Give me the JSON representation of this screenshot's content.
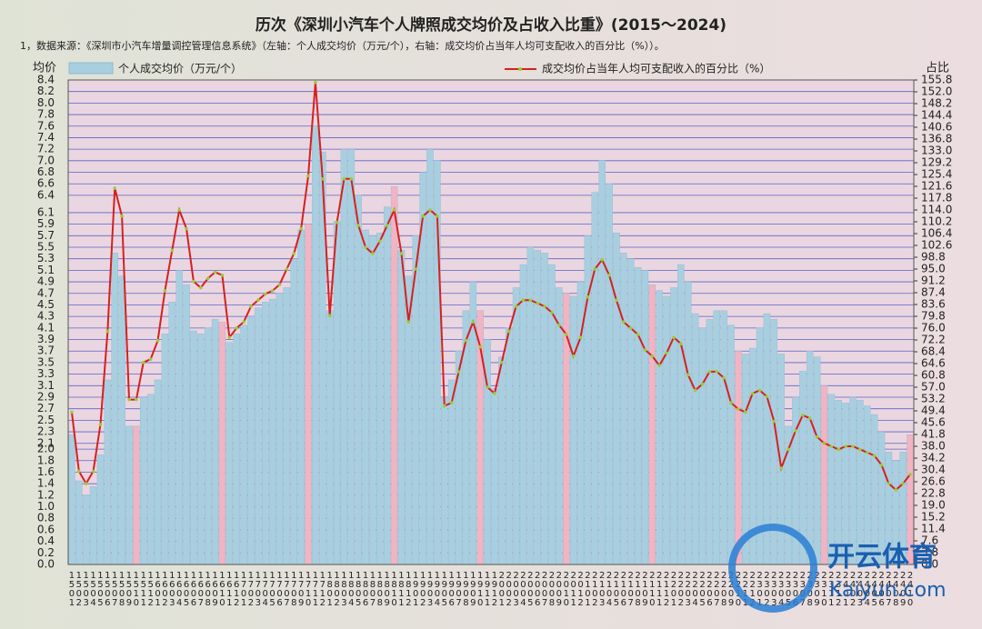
{
  "chart_data": {
    "type": "bar_line",
    "title": "历次《深圳小汽车个人牌照成交均价及占收入比重》(2015～2024)",
    "subtitle": "1，数据来源：《深圳市小汽车增量调控管理信息系统》（左轴：个人成交均价（万元/个），右轴：成交均价占当年人均可支配收入的百分比（%））。",
    "ylabel": "均价",
    "y2label": "占比",
    "watermark": "开云体育",
    "watermark_sub": "Kaiyun.com",
    "categories": [
      "1501",
      "1502",
      "1503",
      "1504",
      "1505",
      "1506",
      "1507",
      "1508",
      "1509",
      "1510",
      "1511",
      "1512",
      "1601",
      "1602",
      "1603",
      "1604",
      "1605",
      "1606",
      "1607",
      "1608",
      "1609",
      "1610",
      "1611",
      "1612",
      "1701",
      "1702",
      "1703",
      "1704",
      "1705",
      "1706",
      "1707",
      "1708",
      "1709",
      "1710",
      "1711",
      "1712",
      "1801",
      "1802",
      "1803",
      "1804",
      "1805",
      "1806",
      "1807",
      "1808",
      "1809",
      "1810",
      "1811",
      "1812",
      "1901",
      "1902",
      "1903",
      "1904",
      "1905",
      "1906",
      "1907",
      "1908",
      "1909",
      "1910",
      "1911",
      "1912",
      "2001",
      "2002",
      "2003",
      "2004",
      "2005",
      "2006",
      "2007",
      "2008",
      "2009",
      "2010",
      "2011",
      "2012",
      "2101",
      "2102",
      "2103",
      "2104",
      "2105",
      "2106",
      "2107",
      "2108",
      "2109",
      "2110",
      "2111",
      "2112",
      "2201",
      "2202",
      "2203",
      "2204",
      "2205",
      "2206",
      "2207",
      "2208",
      "2209",
      "2210",
      "2211",
      "2212",
      "2301",
      "2302",
      "2303",
      "2304",
      "2305",
      "2306",
      "2307",
      "2308",
      "2309",
      "2310",
      "2311",
      "2312",
      "2401",
      "2402",
      "2403",
      "2404",
      "2405",
      "2406",
      "2407",
      "2408",
      "2409",
      "2410"
    ],
    "series": [
      {
        "name": "个人成交均价（万元/个）",
        "color": "#a8cfe0",
        "highlight_color": "#f2b3c3",
        "highlight": [
          9,
          21,
          33,
          45,
          57,
          69,
          81,
          93,
          105,
          117
        ],
        "values": [
          2.25,
          1.45,
          1.2,
          1.35,
          1.9,
          3.2,
          5.4,
          5.0,
          2.4,
          2.4,
          2.9,
          2.95,
          3.2,
          4.0,
          4.55,
          5.1,
          4.85,
          4.05,
          4.0,
          4.1,
          4.25,
          4.2,
          3.85,
          4.0,
          4.15,
          4.3,
          4.45,
          4.55,
          4.6,
          4.7,
          4.8,
          5.3,
          5.8,
          5.9,
          7.6,
          7.15,
          4.4,
          5.95,
          7.2,
          7.2,
          6.4,
          5.8,
          5.7,
          5.75,
          6.2,
          6.55,
          5.45,
          5.0,
          5.7,
          6.8,
          7.2,
          7.0,
          2.9,
          3.2,
          3.7,
          4.4,
          4.9,
          4.4,
          3.9,
          3.05,
          3.6,
          4.1,
          4.8,
          5.2,
          5.5,
          5.45,
          5.4,
          5.2,
          4.8,
          4.7,
          4.65,
          4.9,
          5.7,
          6.45,
          7.0,
          6.6,
          5.75,
          5.4,
          5.3,
          5.15,
          5.1,
          4.85,
          4.75,
          4.65,
          4.8,
          5.2,
          4.9,
          4.35,
          4.1,
          4.25,
          4.4,
          4.4,
          4.15,
          3.7,
          3.65,
          3.75,
          4.1,
          4.35,
          4.25,
          3.65,
          2.4,
          2.9,
          3.35,
          3.7,
          3.6,
          3.1,
          2.95,
          2.85,
          2.8,
          2.9,
          2.85,
          2.75,
          2.6,
          2.3,
          1.95,
          1.8,
          1.95,
          2.25
        ]
      },
      {
        "name": "成交均价占当年人均可支配收入的百分比（%）",
        "color": "#d62020",
        "marker_color": "#9acd32",
        "axis": "y2",
        "values": [
          49,
          30,
          26,
          30,
          45,
          75,
          121,
          112,
          53,
          53,
          65,
          66,
          72,
          88,
          101,
          114,
          108,
          91,
          89,
          92,
          94,
          93,
          73,
          76,
          78,
          83,
          85,
          87,
          88,
          90,
          95,
          100,
          108,
          125,
          155,
          124,
          80,
          110,
          124,
          124,
          109,
          102,
          100,
          104,
          109,
          114,
          100,
          78,
          95,
          112,
          114,
          112,
          51,
          52,
          62,
          72,
          78,
          70,
          57,
          55,
          65,
          75,
          83,
          85,
          85,
          84,
          83,
          81,
          77,
          74,
          67,
          73,
          86,
          95,
          98,
          93,
          85,
          78,
          76,
          74,
          69,
          67,
          64,
          68,
          73,
          71,
          61,
          56,
          58,
          62,
          62,
          60,
          52,
          50,
          49,
          55,
          56,
          54,
          46,
          31,
          37,
          43,
          48,
          47,
          41,
          39,
          38,
          37,
          38,
          38,
          37,
          36,
          35,
          32,
          26,
          24,
          26,
          29
        ]
      }
    ],
    "ylim": [
      0,
      8.4
    ],
    "yticks": [
      {
        "value": 0,
        "label": "0.0"
      },
      0.2,
      0.4,
      0.6,
      0.8,
      {
        "value": 1,
        "label": "1.0"
      },
      1.2,
      1.4,
      1.6,
      1.8,
      {
        "value": 2,
        "label": "2.0"
      },
      2.1,
      2.3,
      2.5,
      2.7,
      2.9,
      3.1,
      3.3,
      3.5,
      3.7,
      3.9,
      4.1,
      4.3,
      4.5,
      4.7,
      4.9,
      5.1,
      5.3,
      5.5,
      5.7,
      5.9,
      6.1,
      6.4,
      6.6,
      6.8,
      {
        "value": 7,
        "label": "7.0"
      },
      7.2,
      7.4,
      7.6,
      7.8,
      {
        "value": 8,
        "label": "8.0"
      },
      8.2,
      8.4
    ],
    "y2lim": [
      0,
      155.8
    ],
    "y2ticks": [
      {
        "value": 0,
        "label": "0.0"
      },
      3.8,
      7.6,
      11.4,
      15.2,
      {
        "value": 19,
        "label": "19.0"
      },
      22.8,
      26.6,
      30.4,
      34.2,
      {
        "value": 38,
        "label": "38.0"
      },
      41.8,
      45.6,
      49.4,
      53.2,
      {
        "value": 57,
        "label": "57.0"
      },
      60.8,
      64.6,
      68.4,
      72.2,
      {
        "value": 76,
        "label": "76.0"
      },
      79.8,
      83.6,
      87.4,
      91.2,
      {
        "value": 95,
        "label": "95.0"
      },
      98.8,
      102.6,
      106.4,
      110.2,
      {
        "value": 114,
        "label": "114.0"
      },
      117.8,
      121.6,
      125.4,
      129.2,
      {
        "value": 133,
        "label": "133.0"
      },
      136.8,
      140.6,
      144.4,
      148.2,
      {
        "value": 152,
        "label": "152.0"
      },
      155.8
    ],
    "grid": true,
    "grid_color": "#5a63c8",
    "plot_background": "#ead6e0"
  }
}
